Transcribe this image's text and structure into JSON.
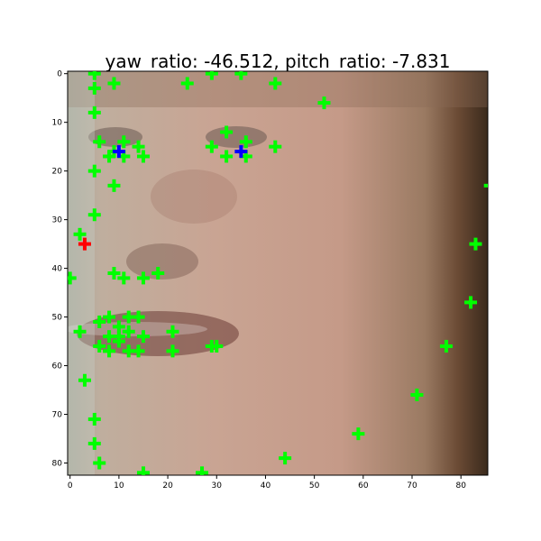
{
  "chart_data": {
    "type": "scatter",
    "title": "yaw_ratio: -46.512, pitch_ratio: -7.831",
    "xlabel": "",
    "ylabel": "",
    "xlim": [
      -0.5,
      85.5
    ],
    "ylim": [
      82.5,
      -0.5
    ],
    "x_ticks": [
      0,
      10,
      20,
      30,
      40,
      50,
      60,
      70,
      80
    ],
    "y_ticks": [
      0,
      10,
      20,
      30,
      40,
      50,
      60,
      70,
      80
    ],
    "grid": false,
    "legend": "none",
    "background": "grayscale-tinted face photograph (image data not reproducible as text)",
    "series": [
      {
        "marker": "plus",
        "color": "#00ff00",
        "points": [
          [
            5,
            0
          ],
          [
            9,
            2
          ],
          [
            5,
            3
          ],
          [
            24,
            2
          ],
          [
            29,
            0
          ],
          [
            35,
            0
          ],
          [
            42,
            2
          ],
          [
            52,
            6
          ],
          [
            5,
            8
          ],
          [
            6,
            14
          ],
          [
            32,
            12
          ],
          [
            29,
            15
          ],
          [
            36,
            14
          ],
          [
            42,
            15
          ],
          [
            11,
            14
          ],
          [
            14,
            15
          ],
          [
            8,
            17
          ],
          [
            9,
            16
          ],
          [
            11,
            17
          ],
          [
            15,
            17
          ],
          [
            32,
            17
          ],
          [
            36,
            17
          ],
          [
            5,
            20
          ],
          [
            9,
            23
          ],
          [
            5,
            29
          ],
          [
            2,
            33
          ],
          [
            86,
            23
          ],
          [
            83,
            35
          ],
          [
            0,
            42
          ],
          [
            9,
            41
          ],
          [
            11,
            42
          ],
          [
            15,
            42
          ],
          [
            18,
            41
          ],
          [
            82,
            47
          ],
          [
            6,
            51
          ],
          [
            8,
            50
          ],
          [
            10,
            52
          ],
          [
            12,
            50
          ],
          [
            14,
            50
          ],
          [
            2,
            53
          ],
          [
            8,
            54
          ],
          [
            10,
            54
          ],
          [
            12,
            53
          ],
          [
            15,
            54
          ],
          [
            21,
            53
          ],
          [
            6,
            56
          ],
          [
            8,
            57
          ],
          [
            10,
            55
          ],
          [
            12,
            57
          ],
          [
            14,
            57
          ],
          [
            21,
            57
          ],
          [
            29,
            56
          ],
          [
            30,
            56
          ],
          [
            77,
            56
          ],
          [
            3,
            63
          ],
          [
            5,
            71
          ],
          [
            71,
            66
          ],
          [
            59,
            74
          ],
          [
            5,
            76
          ],
          [
            6,
            80
          ],
          [
            44,
            79
          ],
          [
            27,
            82
          ],
          [
            15,
            82
          ]
        ]
      },
      {
        "marker": "plus",
        "color": "#0000ff",
        "points": [
          [
            10,
            16
          ],
          [
            35,
            16
          ]
        ]
      },
      {
        "marker": "plus",
        "color": "#ff0000",
        "points": [
          [
            3,
            35
          ]
        ]
      }
    ]
  }
}
